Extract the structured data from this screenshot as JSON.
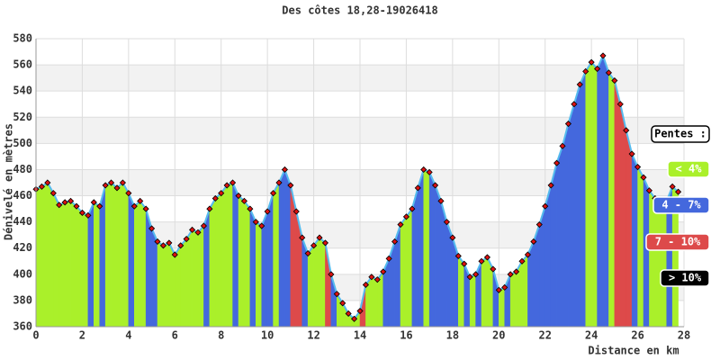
{
  "chart_data": {
    "type": "area-profile",
    "title": "Des côtes 18,28-19026418",
    "x_label": "Distance en km",
    "y_label": "Dénivelé en mètres",
    "x": [
      0,
      0.25,
      0.5,
      0.75,
      1,
      1.25,
      1.5,
      1.75,
      2,
      2.25,
      2.5,
      2.75,
      3,
      3.25,
      3.5,
      3.75,
      4,
      4.25,
      4.5,
      4.75,
      5,
      5.25,
      5.5,
      5.75,
      6,
      6.25,
      6.5,
      6.75,
      7,
      7.25,
      7.5,
      7.75,
      8,
      8.25,
      8.5,
      8.75,
      9,
      9.25,
      9.5,
      9.75,
      10,
      10.25,
      10.5,
      10.75,
      11,
      11.25,
      11.5,
      11.75,
      12,
      12.25,
      12.5,
      12.75,
      13,
      13.25,
      13.5,
      13.75,
      14,
      14.25,
      14.5,
      14.75,
      15,
      15.25,
      15.5,
      15.75,
      16,
      16.25,
      16.5,
      16.75,
      17,
      17.25,
      17.5,
      17.75,
      18,
      18.25,
      18.5,
      18.75,
      19,
      19.25,
      19.5,
      19.75,
      20,
      20.25,
      20.5,
      20.75,
      21,
      21.25,
      21.5,
      21.75,
      22,
      22.25,
      22.5,
      22.75,
      23,
      23.25,
      23.5,
      23.75,
      24,
      24.25,
      24.5,
      24.75,
      25,
      25.25,
      25.5,
      25.75,
      26,
      26.25,
      26.5,
      26.75,
      27,
      27.25,
      27.5,
      27.75
    ],
    "values": [
      465,
      467,
      470,
      462,
      453,
      455,
      456,
      452,
      447,
      445,
      455,
      452,
      468,
      470,
      466,
      470,
      462,
      452,
      456,
      450,
      435,
      425,
      422,
      424,
      415,
      422,
      427,
      434,
      432,
      437,
      450,
      458,
      462,
      468,
      470,
      460,
      456,
      450,
      440,
      437,
      448,
      462,
      470,
      480,
      468,
      448,
      428,
      416,
      422,
      428,
      424,
      400,
      385,
      378,
      370,
      366,
      372,
      392,
      398,
      396,
      402,
      412,
      425,
      438,
      444,
      450,
      466,
      480,
      478,
      468,
      456,
      440,
      428,
      414,
      408,
      398,
      400,
      410,
      413,
      404,
      388,
      390,
      400,
      402,
      410,
      415,
      425,
      438,
      452,
      468,
      485,
      498,
      515,
      530,
      545,
      555,
      562,
      557,
      567,
      554,
      548,
      530,
      510,
      492,
      482,
      474,
      464,
      458,
      455,
      456,
      467,
      463
    ],
    "line_color": "#55bbee",
    "marker_color": "#dd1111",
    "xlim": [
      0,
      28
    ],
    "xticks": [
      0,
      2,
      4,
      6,
      8,
      10,
      12,
      14,
      16,
      18,
      20,
      22,
      24,
      26,
      28
    ],
    "ylim": [
      360,
      580
    ],
    "yticks": [
      360,
      380,
      400,
      420,
      440,
      460,
      480,
      500,
      520,
      540,
      560,
      580
    ],
    "grid": true,
    "legend_title": "Pentes :",
    "slope_classes": [
      {
        "label": "< 4%",
        "max": 4,
        "color": "#aaf02a"
      },
      {
        "label": "4 - 7%",
        "max": 7,
        "color": "#4468dd"
      },
      {
        "label": "7 - 10%",
        "max": 10,
        "color": "#dd4a4a"
      },
      {
        "label": "> 10%",
        "color": "#000000"
      }
    ]
  }
}
